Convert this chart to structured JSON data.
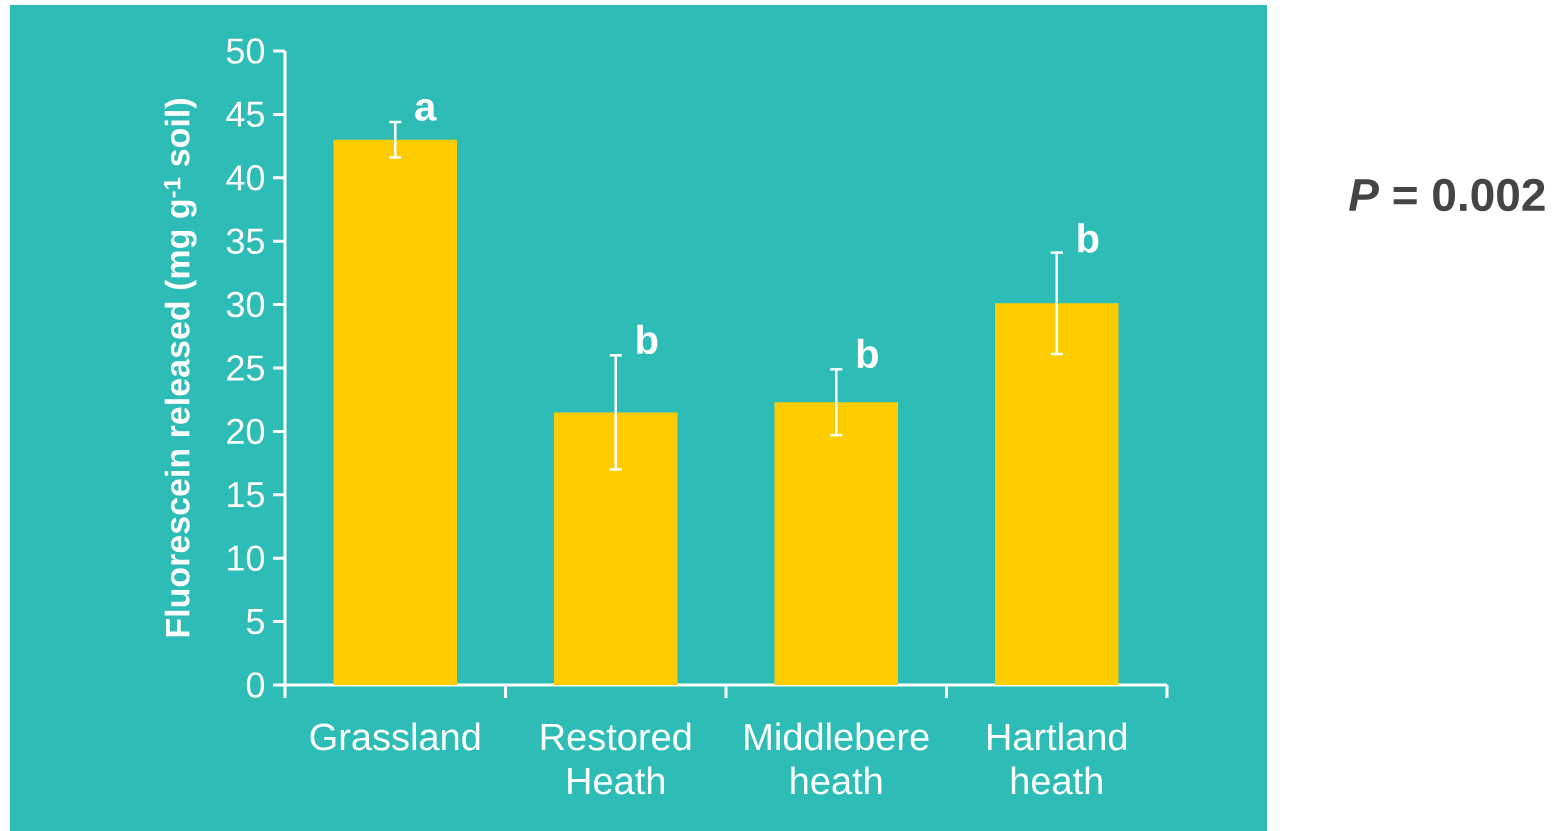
{
  "chart_data": {
    "type": "bar",
    "ylabel": "Fluorescein  released (mg g$^{-1}$ soil)",
    "categories": [
      "Grassland",
      "Restored Heath",
      "Middlebere heath",
      "Hartland heath"
    ],
    "values": [
      43,
      21.5,
      22.3,
      30.1
    ],
    "errors": [
      1.4,
      4.5,
      2.6,
      4
    ],
    "color": "#ffcc00",
    "ylim": [
      0,
      50
    ],
    "yticks": [
      0,
      5,
      10,
      15,
      20,
      25,
      30,
      35,
      40,
      45,
      50
    ],
    "annotations": [
      {
        "text": "a",
        "x": "Grassland",
        "y": 44.4
      },
      {
        "text": "b",
        "x": "Restored Heath",
        "y": 26
      },
      {
        "text": "b",
        "x": "Middlebere heath",
        "y": 24.9
      },
      {
        "text": "b",
        "x": "Hartland heath",
        "y": 34
      },
      "*P* = 0.002"
    ]
  }
}
